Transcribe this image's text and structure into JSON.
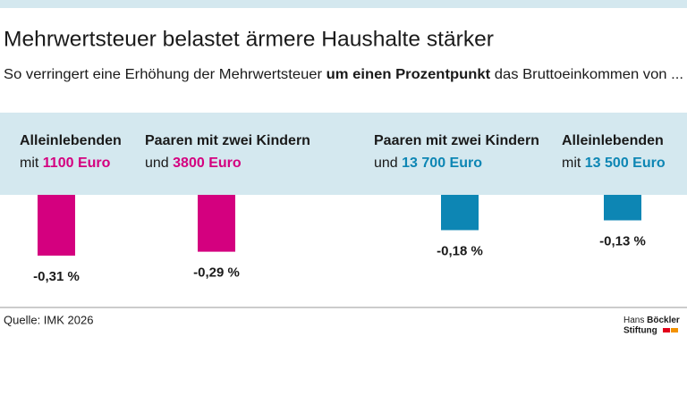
{
  "chart_data": {
    "type": "bar",
    "title": "Mehrwertsteuer belastet ärmere Haushalte stärker",
    "subtitle": [
      "So verringert eine Erhöhung der Mehrwertsteuer ",
      "um einen Prozentpunkt",
      " das Bruttoeinkommen von ..."
    ],
    "categories": [
      "Alleinlebenden",
      "Paaren mit zwei Kindern",
      "Paaren mit zwei Kindern",
      "Alleinlebenden"
    ],
    "category_prefixes": [
      "mit",
      "und",
      "und",
      "mit"
    ],
    "incomes": [
      "1100 Euro",
      "3800 Euro",
      "13 700 Euro",
      "13 500 Euro"
    ],
    "values": [
      -0.31,
      -0.29,
      -0.18,
      -0.13
    ],
    "value_labels": [
      "-0,31 %",
      "-0,29 %",
      "-0,18 %",
      "-0,13 %"
    ],
    "colors": [
      "#d4007f",
      "#d4007f",
      "#0d86b4",
      "#0d86b4"
    ],
    "source": "Quelle: IMK 2026",
    "logo": [
      "Hans",
      "Böckler",
      "Stiftung"
    ]
  }
}
